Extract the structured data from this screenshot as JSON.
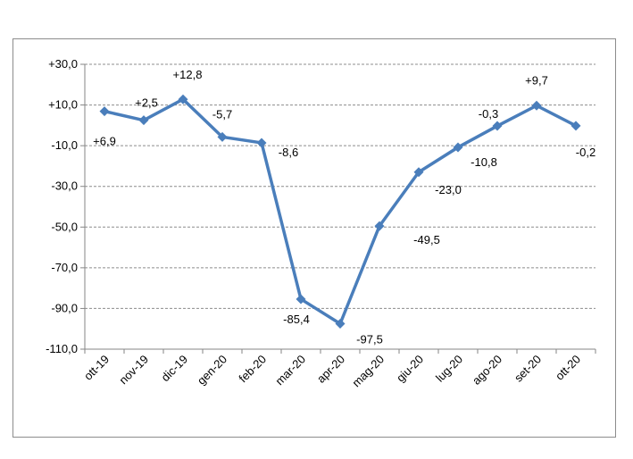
{
  "chart_data": {
    "type": "line",
    "title": "",
    "xlabel": "",
    "ylabel": "",
    "categories": [
      "ott-19",
      "nov-19",
      "dic-19",
      "gen-20",
      "feb-20",
      "mar-20",
      "apr-20",
      "mag-20",
      "giu-20",
      "lug-20",
      "ago-20",
      "set-20",
      "ott-20"
    ],
    "series": [
      {
        "values": [
          6.9,
          2.5,
          12.8,
          -5.7,
          -8.6,
          -85.4,
          -97.5,
          -49.5,
          -23.0,
          -10.8,
          -0.3,
          9.7,
          -0.2
        ],
        "labels": [
          "+6,9",
          "+2,5",
          "+12,8",
          "-5,7",
          "-8,6",
          "-85,4",
          "-97,5",
          "-49,5",
          "-23,0",
          "-10,8",
          "-0,3",
          "+9,7",
          "-0,2"
        ],
        "color": "#4a7ebb",
        "marker": "diamond"
      }
    ],
    "ylim": [
      -110,
      30
    ],
    "yticks": [
      30,
      10,
      -10,
      -30,
      -50,
      -70,
      -90,
      -110
    ],
    "ytick_labels": [
      "+30,0",
      "+10,0",
      "-10,0",
      "-30,0",
      "-50,0",
      "-70,0",
      "-90,0",
      "-110,0"
    ],
    "grid": true,
    "grid_style": "dashed",
    "legend": "none"
  }
}
